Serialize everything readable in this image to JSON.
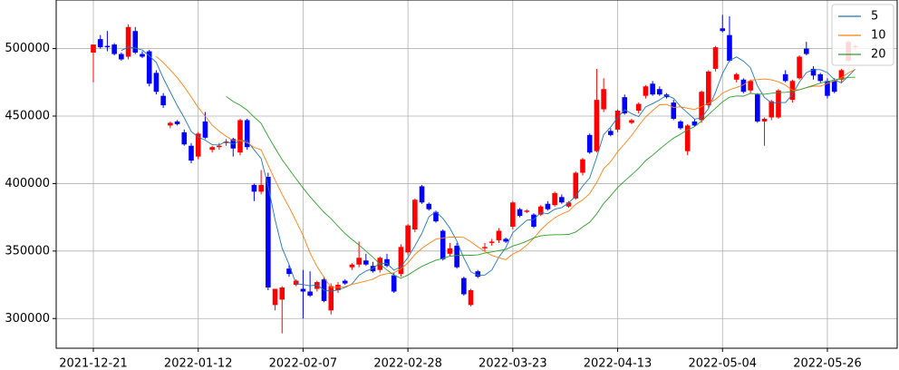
{
  "chart_data": {
    "type": "candlestick",
    "categories": [
      "2021-12-21",
      null,
      null,
      null,
      null,
      null,
      null,
      null,
      null,
      null,
      null,
      null,
      null,
      null,
      null,
      "2022-01-12",
      null,
      null,
      null,
      null,
      null,
      null,
      null,
      null,
      null,
      null,
      null,
      null,
      null,
      null,
      "2022-02-07",
      null,
      null,
      null,
      null,
      null,
      null,
      null,
      null,
      null,
      null,
      null,
      null,
      null,
      null,
      "2022-02-28",
      null,
      null,
      null,
      null,
      null,
      null,
      null,
      null,
      null,
      null,
      null,
      null,
      null,
      null,
      "2022-03-23",
      null,
      null,
      null,
      null,
      null,
      null,
      null,
      null,
      null,
      null,
      null,
      null,
      null,
      null,
      "2022-04-13",
      null,
      null,
      null,
      null,
      null,
      null,
      null,
      null,
      null,
      null,
      null,
      null,
      null,
      null,
      "2022-05-04",
      null,
      null,
      null,
      null,
      null,
      null,
      null,
      null,
      null,
      null,
      null,
      null,
      null,
      null,
      "2022-05-26",
      null,
      null,
      null,
      null
    ],
    "open": [
      497000,
      507000,
      502000,
      503000,
      496000,
      494000,
      513000,
      496000,
      498000,
      482000,
      465000,
      443000,
      446000,
      438000,
      428000,
      420000,
      446000,
      425000,
      427000,
      430000,
      433000,
      423000,
      447000,
      399000,
      394000,
      405000,
      310000,
      314000,
      337000,
      325000,
      322000,
      320000,
      322000,
      329000,
      306000,
      321000,
      328000,
      338000,
      340000,
      343000,
      339000,
      336000,
      344000,
      332000,
      333000,
      349000,
      366000,
      398000,
      385000,
      379000,
      365000,
      348000,
      354000,
      330000,
      310000,
      335000,
      352000,
      356000,
      358000,
      359000,
      368000,
      381000,
      379000,
      377000,
      377000,
      385000,
      384000,
      390000,
      383000,
      389000,
      408000,
      436000,
      424000,
      455000,
      439000,
      440000,
      464000,
      445000,
      454000,
      465000,
      474000,
      470000,
      466000,
      460000,
      446000,
      424000,
      446000,
      447000,
      458000,
      485000,
      515000,
      510000,
      477000,
      477000,
      469000,
      466000,
      446000,
      449000,
      449000,
      481000,
      462000,
      478000,
      500000,
      485000,
      481000,
      476000,
      476000,
      477000,
      491000,
      501000
    ],
    "high": [
      503000,
      510000,
      513000,
      504000,
      497000,
      518000,
      516000,
      498000,
      499000,
      484000,
      467000,
      446000,
      447000,
      440000,
      430000,
      438000,
      453000,
      428000,
      430000,
      433000,
      434000,
      448000,
      448000,
      400000,
      410000,
      408000,
      322000,
      324000,
      340000,
      329000,
      336000,
      335000,
      328000,
      331000,
      326000,
      327000,
      329000,
      341000,
      357000,
      348000,
      342000,
      346000,
      348000,
      334000,
      355000,
      370000,
      389000,
      399000,
      386000,
      380000,
      366000,
      356000,
      356000,
      331000,
      322000,
      336000,
      356000,
      359000,
      367000,
      360000,
      387000,
      382000,
      381000,
      378000,
      384000,
      387000,
      394000,
      392000,
      387000,
      409000,
      419000,
      437000,
      485000,
      478000,
      441000,
      455000,
      466000,
      448000,
      460000,
      473000,
      476000,
      472000,
      467000,
      462000,
      447000,
      444000,
      448000,
      469000,
      484000,
      502000,
      525000,
      524000,
      482000,
      478000,
      477000,
      467000,
      449000,
      462000,
      470000,
      484000,
      477000,
      495000,
      505000,
      487000,
      482000,
      478000,
      478000,
      485000,
      506000,
      503000
    ],
    "low": [
      475000,
      500000,
      498000,
      495000,
      491000,
      492000,
      496000,
      493000,
      472000,
      466000,
      456000,
      441000,
      443000,
      428000,
      415000,
      418000,
      433000,
      423000,
      425000,
      428000,
      420000,
      421000,
      425000,
      387000,
      392000,
      321000,
      306000,
      289000,
      331000,
      324000,
      300000,
      316000,
      320000,
      312000,
      303000,
      319000,
      325000,
      336000,
      338000,
      339000,
      334000,
      334000,
      338000,
      319000,
      331000,
      347000,
      364000,
      385000,
      380000,
      371000,
      343000,
      346000,
      337000,
      317000,
      309000,
      330000,
      350000,
      354000,
      356000,
      356000,
      366000,
      375000,
      378000,
      367000,
      376000,
      380000,
      383000,
      385000,
      382000,
      388000,
      406000,
      422000,
      423000,
      453000,
      435000,
      438000,
      451000,
      444000,
      452000,
      463000,
      465000,
      465000,
      463000,
      447000,
      440000,
      421000,
      442000,
      445000,
      456000,
      483000,
      512000,
      490000,
      475000,
      467000,
      467000,
      445000,
      428000,
      447000,
      448000,
      475000,
      460000,
      477000,
      495000,
      477000,
      475000,
      463000,
      467000,
      475000,
      490000,
      499000
    ],
    "close": [
      503000,
      501000,
      501000,
      496000,
      492000,
      516000,
      497000,
      494000,
      474000,
      468000,
      458000,
      445000,
      444000,
      429000,
      417000,
      437000,
      434000,
      427000,
      428000,
      431000,
      426000,
      447000,
      427000,
      394000,
      399000,
      323000,
      322000,
      323000,
      333000,
      328000,
      320000,
      317000,
      327000,
      313000,
      324000,
      325000,
      326000,
      340000,
      345000,
      340000,
      335000,
      345000,
      339000,
      320000,
      353000,
      369000,
      388000,
      386000,
      381000,
      372000,
      344000,
      352000,
      338000,
      318000,
      321000,
      331000,
      353000,
      357000,
      365000,
      357000,
      386000,
      376000,
      380000,
      368000,
      383000,
      381000,
      393000,
      386000,
      386000,
      408000,
      418000,
      423000,
      462000,
      470000,
      436000,
      454000,
      452000,
      447000,
      459000,
      472000,
      466000,
      466000,
      464000,
      448000,
      441000,
      443000,
      443000,
      468000,
      483000,
      501000,
      513000,
      491000,
      481000,
      468000,
      476000,
      446000,
      448000,
      461000,
      469000,
      476000,
      476000,
      494000,
      496000,
      480000,
      476000,
      465000,
      468000,
      484000,
      505000,
      502000
    ],
    "up_color": "#ff0000",
    "down_color": "#0000ff",
    "moving_averages": [
      {
        "name": "5",
        "color": "#1f77b4"
      },
      {
        "name": "10",
        "color": "#ff7f0e"
      },
      {
        "name": "20",
        "color": "#2ca02c"
      }
    ],
    "legend": "upper right",
    "ylim": [
      278000,
      536000
    ],
    "yticks": [
      300000,
      350000,
      400000,
      450000,
      500000
    ],
    "grid": true
  }
}
